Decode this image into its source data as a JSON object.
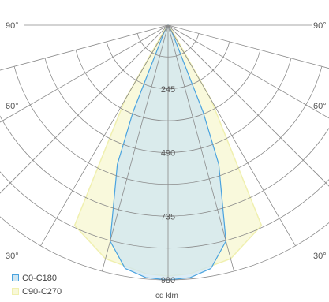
{
  "chart_data": {
    "type": "polar",
    "unit": "cd klm",
    "radial_ticks": [
      245,
      490,
      735,
      980
    ],
    "r_max": 980,
    "angle_labels": {
      "left_top": "90°",
      "right_top": "90°",
      "left_mid": "60°",
      "right_mid": "60°",
      "left_bottom": "30°",
      "right_bottom": "30°"
    },
    "legend": {
      "position": "bottom-left"
    },
    "series": [
      {
        "name": "C0-C180",
        "color": "#4aa3df",
        "fill": "#cfe6f2",
        "points": [
          [
            -90,
            0
          ],
          [
            -30,
            30
          ],
          [
            -22,
            360
          ],
          [
            -20,
            570
          ],
          [
            -15,
            860
          ],
          [
            -10,
            950
          ],
          [
            -5,
            975
          ],
          [
            0,
            980
          ],
          [
            5,
            975
          ],
          [
            10,
            950
          ],
          [
            15,
            860
          ],
          [
            20,
            570
          ],
          [
            22,
            360
          ],
          [
            30,
            30
          ],
          [
            90,
            0
          ]
        ]
      },
      {
        "name": "C90-C270",
        "color": "#f0f0b0",
        "fill": "#f8f8d8",
        "points": [
          [
            -90,
            0
          ],
          [
            -35,
            30
          ],
          [
            -30,
            330
          ],
          [
            -25,
            850
          ],
          [
            -15,
            930
          ],
          [
            -5,
            960
          ],
          [
            0,
            965
          ],
          [
            5,
            960
          ],
          [
            15,
            930
          ],
          [
            25,
            850
          ],
          [
            30,
            330
          ],
          [
            35,
            30
          ],
          [
            90,
            0
          ]
        ]
      }
    ]
  }
}
